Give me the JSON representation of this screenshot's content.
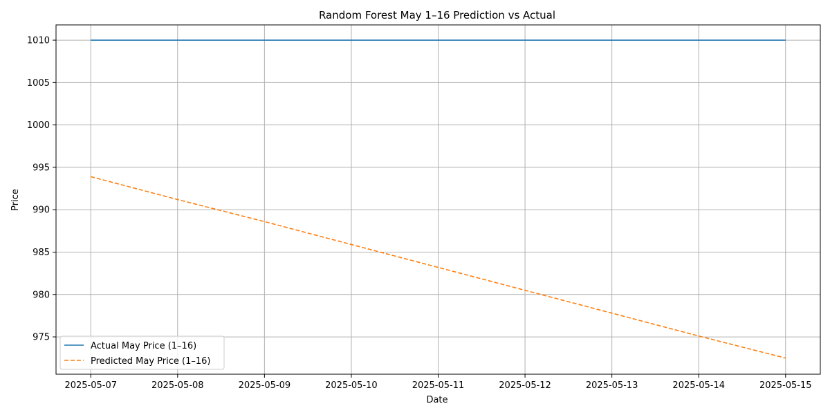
{
  "chart_data": {
    "type": "line",
    "title": "Random Forest May 1–16 Prediction vs Actual",
    "xlabel": "Date",
    "ylabel": "Price",
    "x": [
      "2025-05-07",
      "2025-05-08",
      "2025-05-09",
      "2025-05-10",
      "2025-05-11",
      "2025-05-12",
      "2025-05-13",
      "2025-05-14",
      "2025-05-15"
    ],
    "x_ticks": [
      "2025-05-07",
      "2025-05-08",
      "2025-05-09",
      "2025-05-10",
      "2025-05-11",
      "2025-05-12",
      "2025-05-13",
      "2025-05-14",
      "2025-05-15"
    ],
    "y_ticks": [
      975,
      980,
      985,
      990,
      995,
      1000,
      1005,
      1010
    ],
    "ylim": [
      970.6,
      1011.8
    ],
    "xlim": [
      "2025-05-06.6",
      "2025-05-15.4"
    ],
    "grid": true,
    "legend_position": "lower-left",
    "series": [
      {
        "name": "Actual May Price (1–16)",
        "color": "#1f77b4",
        "style": "solid",
        "values": [
          1010,
          1010,
          1010,
          1010,
          1010,
          1010,
          1010,
          1010,
          1010
        ]
      },
      {
        "name": "Predicted May Price (1–16)",
        "color": "#ff7f0e",
        "style": "dashed",
        "values": [
          993.9,
          991.2,
          988.6,
          985.9,
          983.2,
          980.5,
          977.8,
          975.1,
          972.5
        ]
      }
    ]
  }
}
